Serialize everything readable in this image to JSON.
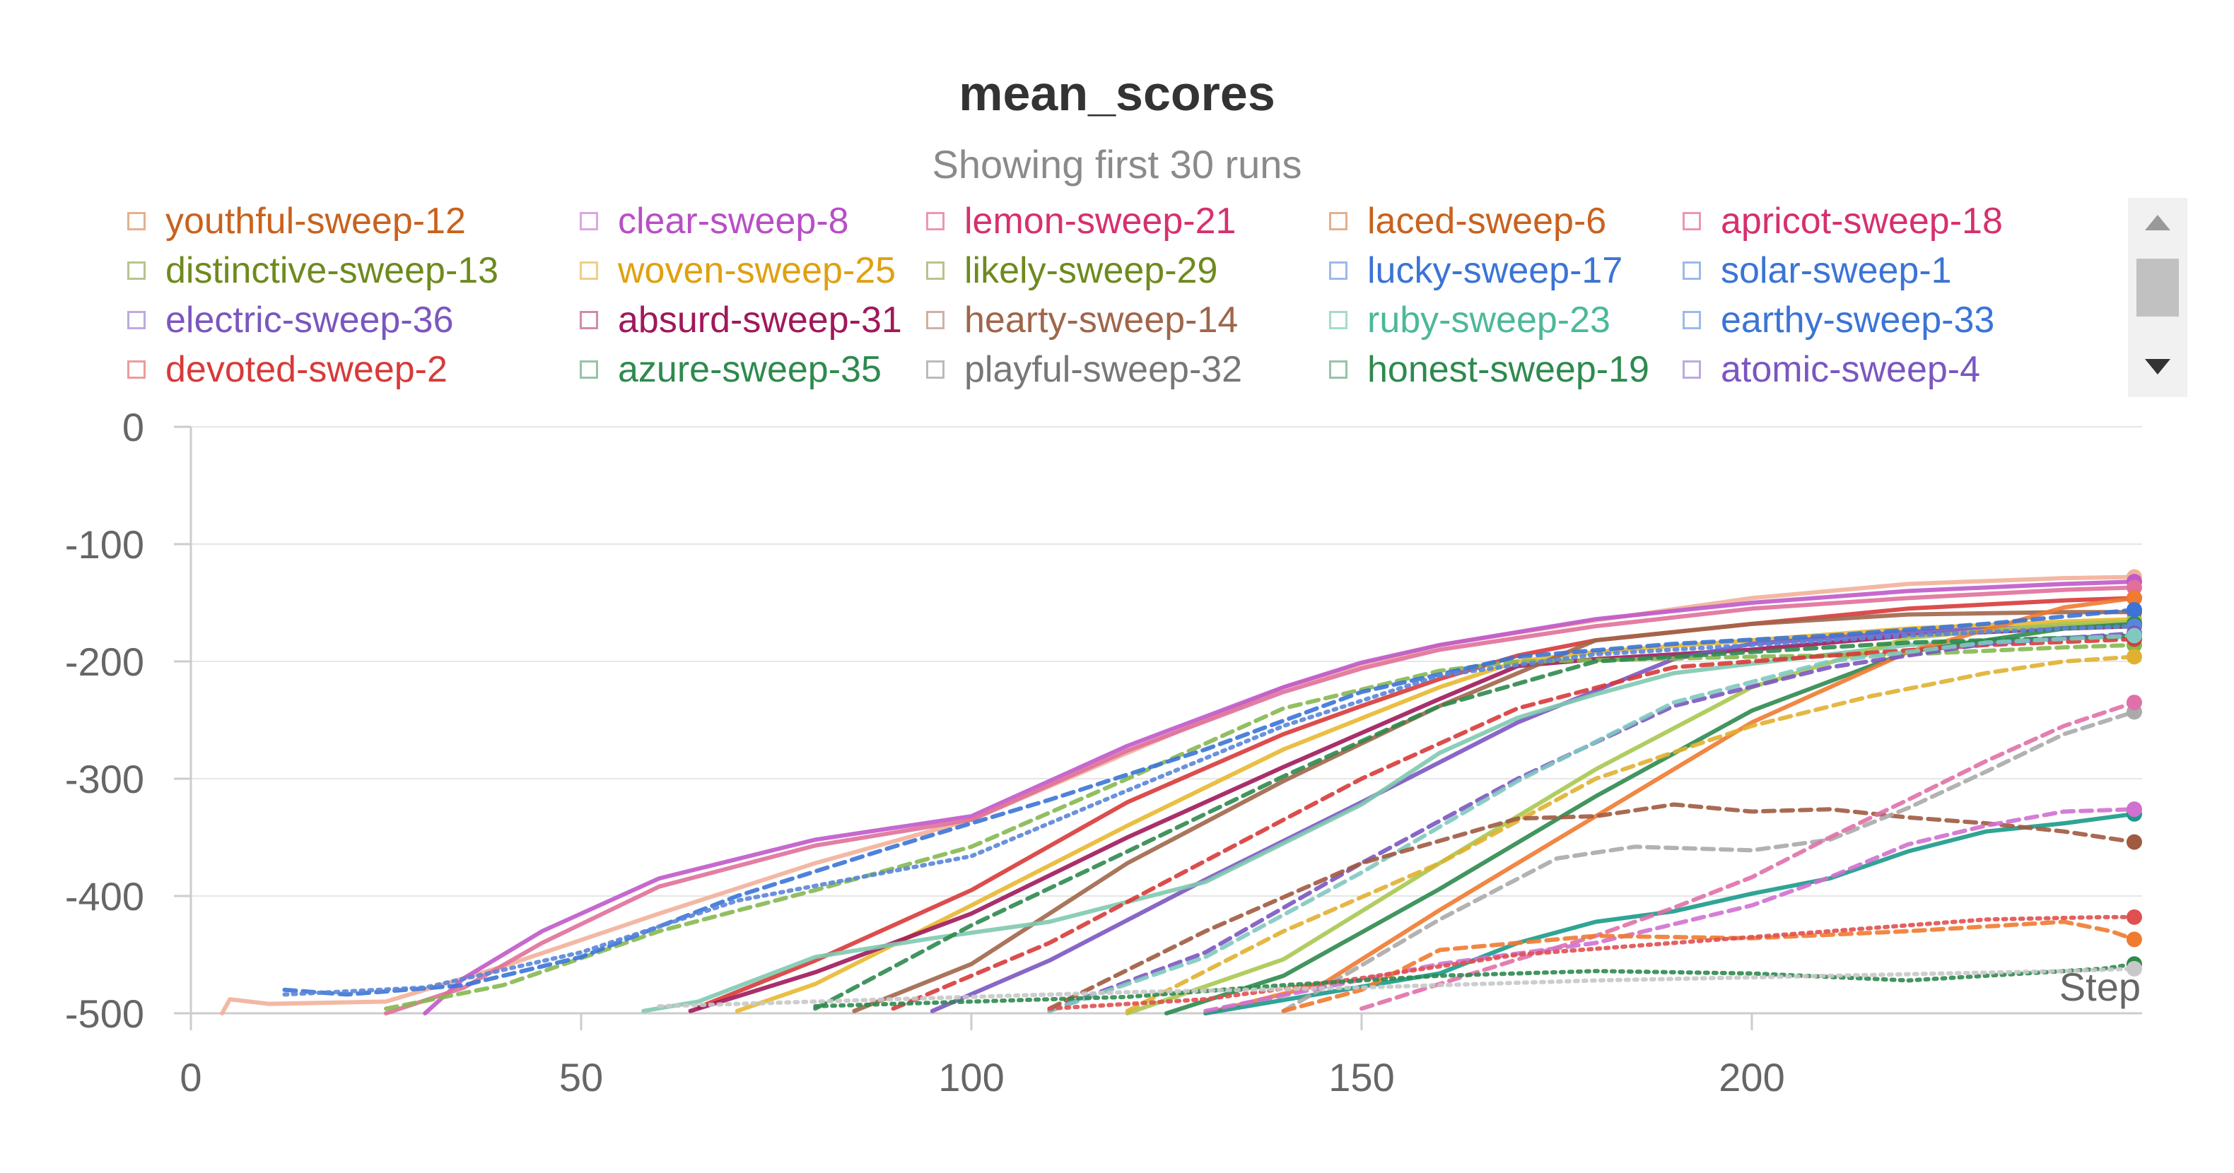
{
  "chart_data": {
    "type": "line",
    "title": "mean_scores",
    "subtitle": "Showing first 30 runs",
    "xlabel": "Step",
    "ylabel": "",
    "xlim": [
      0,
      250
    ],
    "ylim": [
      -500,
      0
    ],
    "x_ticks": [
      0,
      50,
      100,
      150,
      200
    ],
    "y_ticks": [
      0,
      -100,
      -200,
      -300,
      -400,
      -500
    ],
    "grid": true,
    "legend_position": "top",
    "legend": [
      {
        "name": "youthful-sweep-12",
        "color": "#c8621e"
      },
      {
        "name": "clear-sweep-8",
        "color": "#b84fc6"
      },
      {
        "name": "lemon-sweep-21",
        "color": "#d6306e"
      },
      {
        "name": "laced-sweep-6",
        "color": "#c8621e"
      },
      {
        "name": "apricot-sweep-18",
        "color": "#d6306e"
      },
      {
        "name": "distinctive-sweep-13",
        "color": "#6e8a1e"
      },
      {
        "name": "woven-sweep-25",
        "color": "#e0a010"
      },
      {
        "name": "likely-sweep-29",
        "color": "#6e8a1e"
      },
      {
        "name": "lucky-sweep-17",
        "color": "#3b74d6"
      },
      {
        "name": "solar-sweep-1",
        "color": "#3b74d6"
      },
      {
        "name": "electric-sweep-36",
        "color": "#7b56c0"
      },
      {
        "name": "absurd-sweep-31",
        "color": "#a0185a"
      },
      {
        "name": "hearty-sweep-14",
        "color": "#a0664a"
      },
      {
        "name": "ruby-sweep-23",
        "color": "#4cb89a"
      },
      {
        "name": "earthy-sweep-33",
        "color": "#3b74d6"
      },
      {
        "name": "devoted-sweep-2",
        "color": "#d83a3a"
      },
      {
        "name": "azure-sweep-35",
        "color": "#2e8a4e"
      },
      {
        "name": "playful-sweep-32",
        "color": "#777777"
      },
      {
        "name": "honest-sweep-19",
        "color": "#2e8a4e"
      },
      {
        "name": "atomic-sweep-4",
        "color": "#7b56c0"
      }
    ],
    "series": [
      {
        "color": "#f2b09a",
        "dash": "solid",
        "x": [
          4,
          5,
          10,
          25,
          40,
          60,
          80,
          100,
          120,
          140,
          150,
          160,
          180,
          200,
          220,
          240,
          249
        ],
        "y": [
          -500,
          -488,
          -492,
          -490,
          -460,
          -415,
          -372,
          -335,
          -278,
          -222,
          -203,
          -186,
          -165,
          -146,
          -134,
          -129,
          -128
        ]
      },
      {
        "color": "#c059c9",
        "dash": "solid",
        "x": [
          30,
          35,
          45,
          60,
          80,
          100,
          120,
          140,
          150,
          160,
          180,
          200,
          220,
          240,
          249
        ],
        "y": [
          -500,
          -470,
          -430,
          -385,
          -352,
          -332,
          -272,
          -222,
          -201,
          -186,
          -164,
          -150,
          -140,
          -134,
          -132
        ]
      },
      {
        "color": "#e0709a",
        "dash": "solid",
        "x": [
          25,
          35,
          45,
          60,
          80,
          100,
          120,
          140,
          150,
          160,
          180,
          200,
          220,
          240,
          249
        ],
        "y": [
          -500,
          -478,
          -440,
          -392,
          -357,
          -335,
          -276,
          -226,
          -206,
          -190,
          -170,
          -155,
          -146,
          -139,
          -137
        ]
      },
      {
        "color": "#d83a3a",
        "dash": "solid",
        "x": [
          65,
          80,
          100,
          120,
          140,
          150,
          160,
          170,
          180,
          200,
          220,
          240,
          249
        ],
        "y": [
          -495,
          -455,
          -395,
          -320,
          -262,
          -238,
          -215,
          -195,
          -182,
          -168,
          -155,
          -148,
          -146
        ]
      },
      {
        "color": "#e8b830",
        "dash": "solid",
        "x": [
          70,
          80,
          100,
          120,
          140,
          160,
          170,
          180,
          200,
          220,
          240,
          249
        ],
        "y": [
          -498,
          -475,
          -408,
          -340,
          -275,
          -222,
          -200,
          -192,
          -182,
          -172,
          -166,
          -164
        ]
      },
      {
        "color": "#a0185a",
        "dash": "solid",
        "x": [
          64,
          80,
          100,
          120,
          140,
          160,
          170,
          180,
          200,
          220,
          240,
          249
        ],
        "y": [
          -498,
          -465,
          -415,
          -350,
          -290,
          -232,
          -204,
          -198,
          -190,
          -178,
          -172,
          -170
        ]
      },
      {
        "color": "#a0664a",
        "dash": "solid",
        "x": [
          85,
          100,
          120,
          140,
          160,
          175,
          180,
          200,
          220,
          240,
          249
        ],
        "y": [
          -498,
          -458,
          -372,
          -302,
          -238,
          -196,
          -182,
          -168,
          -160,
          -158,
          -158
        ]
      },
      {
        "color": "#7b56c0",
        "dash": "solid",
        "x": [
          95,
          110,
          130,
          150,
          170,
          190,
          200,
          220,
          240,
          249
        ],
        "y": [
          -498,
          -455,
          -386,
          -320,
          -252,
          -198,
          -185,
          -175,
          -170,
          -168
        ]
      },
      {
        "color": "#7fc9b0",
        "dash": "solid",
        "x": [
          58,
          65,
          80,
          95,
          110,
          130,
          150,
          160,
          170,
          180,
          190,
          200,
          220,
          240,
          249
        ],
        "y": [
          -498,
          -490,
          -452,
          -436,
          -422,
          -388,
          -322,
          -278,
          -248,
          -228,
          -210,
          -202,
          -186,
          -180,
          -179
        ]
      },
      {
        "color": "#a8c850",
        "dash": "solid",
        "x": [
          120,
          140,
          160,
          180,
          200,
          220,
          240,
          249
        ],
        "y": [
          -500,
          -454,
          -372,
          -292,
          -222,
          -180,
          -168,
          -166
        ]
      },
      {
        "color": "#2e8a4e",
        "dash": "solid",
        "x": [
          125,
          140,
          160,
          180,
          200,
          220,
          240,
          249
        ],
        "y": [
          -500,
          -468,
          -394,
          -315,
          -242,
          -192,
          -172,
          -168
        ]
      },
      {
        "color": "#f07a30",
        "dash": "solid",
        "x": [
          130,
          145,
          160,
          180,
          200,
          220,
          240,
          249
        ],
        "y": [
          -500,
          -475,
          -412,
          -332,
          -252,
          -192,
          -154,
          -146
        ]
      },
      {
        "color": "#1a9a8a",
        "dash": "solid",
        "x": [
          130,
          160,
          170,
          180,
          190,
          200,
          210,
          220,
          230,
          240,
          249
        ],
        "y": [
          -500,
          -466,
          -440,
          -422,
          -413,
          -398,
          -385,
          -362,
          -345,
          -338,
          -330
        ]
      },
      {
        "color": "#86b850",
        "dash": "dashed",
        "x": [
          25,
          40,
          60,
          80,
          100,
          120,
          140,
          160,
          170,
          180,
          200,
          220,
          240,
          249
        ],
        "y": [
          -496,
          -476,
          -430,
          -395,
          -358,
          -300,
          -240,
          -208,
          -200,
          -199,
          -196,
          -194,
          -188,
          -186
        ]
      },
      {
        "color": "#3b74d6",
        "dash": "dashed",
        "x": [
          12,
          20,
          35,
          50,
          70,
          90,
          110,
          130,
          150,
          170,
          190,
          210,
          230,
          249
        ],
        "y": [
          -480,
          -484,
          -476,
          -452,
          -400,
          -358,
          -318,
          -275,
          -226,
          -196,
          -185,
          -178,
          -168,
          -156
        ]
      },
      {
        "color": "#5a86d8",
        "dash": "dotted",
        "x": [
          12,
          30,
          50,
          70,
          100,
          120,
          140,
          160,
          180,
          200,
          220,
          240,
          249
        ],
        "y": [
          -484,
          -478,
          -448,
          -404,
          -366,
          -310,
          -255,
          -212,
          -194,
          -186,
          -178,
          -172,
          -170
        ]
      },
      {
        "color": "#2e8a4e",
        "dash": "dashed",
        "x": [
          80,
          100,
          120,
          140,
          160,
          180,
          200,
          220,
          240,
          249
        ],
        "y": [
          -496,
          -425,
          -362,
          -298,
          -238,
          -200,
          -192,
          -184,
          -180,
          -178
        ]
      },
      {
        "color": "#d83a3a",
        "dash": "dashed",
        "x": [
          90,
          110,
          130,
          150,
          170,
          190,
          210,
          230,
          249
        ],
        "y": [
          -496,
          -440,
          -370,
          -300,
          -240,
          -205,
          -195,
          -186,
          -181
        ]
      },
      {
        "color": "#7b56c0",
        "dash": "dashed",
        "x": [
          110,
          130,
          150,
          170,
          190,
          210,
          230,
          249
        ],
        "y": [
          -498,
          -448,
          -372,
          -300,
          -238,
          -205,
          -185,
          -176
        ]
      },
      {
        "color": "#7fc9c0",
        "dash": "dashed",
        "x": [
          110,
          130,
          150,
          170,
          190,
          210,
          230,
          249
        ],
        "y": [
          -498,
          -452,
          -380,
          -302,
          -235,
          -200,
          -184,
          -178
        ]
      },
      {
        "color": "#e0b030",
        "dash": "dashed",
        "x": [
          120,
          140,
          160,
          180,
          200,
          215,
          230,
          240,
          249
        ],
        "y": [
          -498,
          -430,
          -372,
          -300,
          -255,
          -230,
          -210,
          -200,
          -196
        ]
      },
      {
        "color": "#a05a40",
        "dash": "dashed",
        "x": [
          110,
          130,
          150,
          170,
          180,
          190,
          200,
          210,
          220,
          230,
          240,
          249
        ],
        "y": [
          -496,
          -430,
          -372,
          -334,
          -332,
          -322,
          -328,
          -326,
          -333,
          -338,
          -345,
          -354
        ]
      },
      {
        "color": "#aaaaaa",
        "dash": "dashed",
        "x": [
          140,
          160,
          175,
          185,
          200,
          210,
          220,
          230,
          240,
          249
        ],
        "y": [
          -498,
          -420,
          -368,
          -358,
          -361,
          -352,
          -325,
          -294,
          -262,
          -243
        ]
      },
      {
        "color": "#e070a8",
        "dash": "dashed",
        "x": [
          150,
          170,
          180,
          190,
          200,
          210,
          220,
          230,
          240,
          249
        ],
        "y": [
          -496,
          -454,
          -434,
          -410,
          -384,
          -350,
          -318,
          -285,
          -255,
          -235
        ]
      },
      {
        "color": "#d070d0",
        "dash": "dashed",
        "x": [
          130,
          160,
          180,
          200,
          210,
          220,
          230,
          240,
          249
        ],
        "y": [
          -498,
          -458,
          -440,
          -408,
          -384,
          -356,
          -340,
          -328,
          -326
        ]
      },
      {
        "color": "#f07a30",
        "dash": "dashed",
        "x": [
          140,
          150,
          160,
          170,
          180,
          200,
          220,
          240,
          246,
          249
        ],
        "y": [
          -498,
          -480,
          -446,
          -440,
          -434,
          -436,
          -430,
          -422,
          -430,
          -437
        ]
      },
      {
        "color": "#e05050",
        "dash": "dotted",
        "x": [
          110,
          130,
          150,
          170,
          190,
          210,
          230,
          245,
          249
        ],
        "y": [
          -496,
          -488,
          -470,
          -450,
          -440,
          -430,
          -420,
          -418,
          -418
        ]
      },
      {
        "color": "#2e8a4e",
        "dash": "dotted",
        "x": [
          80,
          120,
          140,
          160,
          180,
          200,
          220,
          235,
          245,
          249
        ],
        "y": [
          -494,
          -486,
          -476,
          -468,
          -464,
          -466,
          -472,
          -466,
          -462,
          -458
        ]
      },
      {
        "color": "#c8c8c8",
        "dash": "dotted",
        "x": [
          60,
          90,
          120,
          150,
          180,
          210,
          240,
          249
        ],
        "y": [
          -494,
          -488,
          -482,
          -478,
          -472,
          -468,
          -464,
          -462
        ]
      }
    ]
  }
}
